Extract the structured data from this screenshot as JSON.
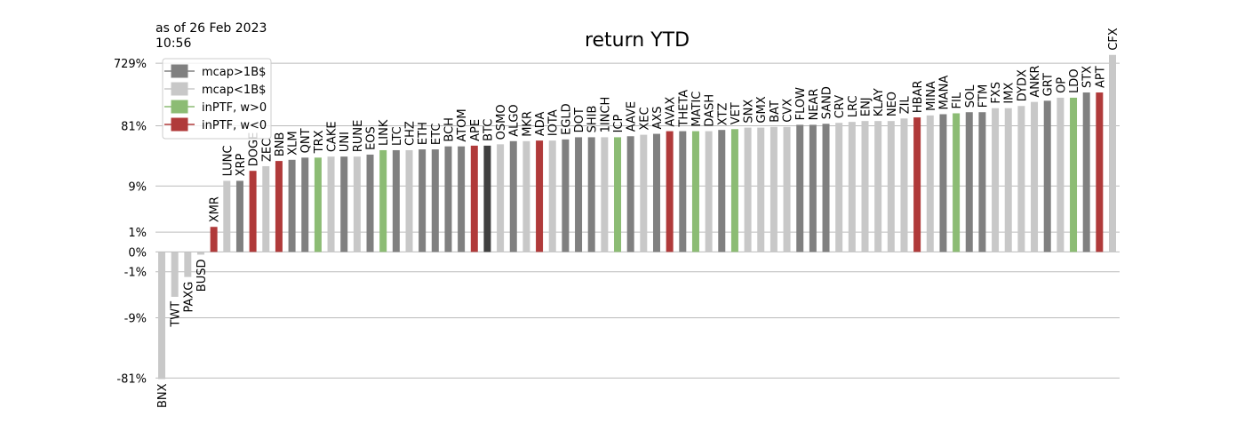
{
  "chart_data": {
    "type": "bar",
    "title": "return YTD",
    "note": [
      "as of 26 Feb 2023",
      "10:56"
    ],
    "scale": "symlog",
    "categories": [
      "BNX",
      "TWT",
      "PAXG",
      "BUSD",
      "XMR",
      "LUNC",
      "XRP",
      "DOGE",
      "ZEC",
      "BNB",
      "XLM",
      "QNT",
      "TRX",
      "CAKE",
      "UNI",
      "RUNE",
      "EOS",
      "LINK",
      "LTC",
      "CHZ",
      "ETH",
      "ETC",
      "BCH",
      "ATOM",
      "APE",
      "BTC",
      "OSMO",
      "ALGO",
      "MKR",
      "ADA",
      "IOTA",
      "EGLD",
      "DOT",
      "SHIB",
      "1INCH",
      "ICP",
      "AAVE",
      "XEC",
      "AXS",
      "AVAX",
      "THETA",
      "MATIC",
      "DASH",
      "XTZ",
      "VET",
      "SNX",
      "GMX",
      "BAT",
      "CVX",
      "FLOW",
      "NEAR",
      "SAND",
      "CRV",
      "LRC",
      "ENJ",
      "KLAY",
      "NEO",
      "ZIL",
      "HBAR",
      "MINA",
      "MANA",
      "FIL",
      "SOL",
      "FTM",
      "FXS",
      "IMX",
      "DYDX",
      "ANKR",
      "GRT",
      "OP",
      "LDO",
      "STX",
      "APT",
      "CFX"
    ],
    "values": [
      -84,
      -3.8,
      -1.4,
      -0.1,
      1.4,
      11,
      11,
      16,
      19,
      23,
      24,
      26,
      26,
      27,
      27,
      27,
      29,
      34,
      34,
      34,
      35,
      35,
      39,
      39,
      40,
      40,
      42,
      47,
      47,
      48,
      48,
      50,
      54,
      54,
      54,
      54,
      56,
      59,
      61,
      67,
      67,
      67,
      67,
      70,
      72,
      76,
      76,
      78,
      78,
      84,
      84,
      87,
      90,
      93,
      96,
      96,
      96,
      105,
      109,
      117,
      122,
      126,
      131,
      131,
      151,
      151,
      163,
      188,
      196,
      218,
      218,
      262,
      262,
      977
    ],
    "colors": [
      "#c8c8c8",
      "#c8c8c8",
      "#c8c8c8",
      "#c8c8c8",
      "#b03a3a",
      "#c8c8c8",
      "#808080",
      "#b03a3a",
      "#c8c8c8",
      "#b03a3a",
      "#808080",
      "#808080",
      "#8cbc74",
      "#c8c8c8",
      "#808080",
      "#c8c8c8",
      "#808080",
      "#8cbc74",
      "#808080",
      "#c8c8c8",
      "#808080",
      "#808080",
      "#808080",
      "#808080",
      "#b03a3a",
      "#404040",
      "#c8c8c8",
      "#808080",
      "#c8c8c8",
      "#b03a3a",
      "#c8c8c8",
      "#808080",
      "#808080",
      "#808080",
      "#c8c8c8",
      "#8cbc74",
      "#808080",
      "#c8c8c8",
      "#808080",
      "#b03a3a",
      "#808080",
      "#8cbc74",
      "#c8c8c8",
      "#808080",
      "#8cbc74",
      "#c8c8c8",
      "#c8c8c8",
      "#c8c8c8",
      "#c8c8c8",
      "#808080",
      "#808080",
      "#808080",
      "#c8c8c8",
      "#c8c8c8",
      "#c8c8c8",
      "#c8c8c8",
      "#c8c8c8",
      "#c8c8c8",
      "#b03a3a",
      "#c8c8c8",
      "#808080",
      "#8cbc74",
      "#808080",
      "#808080",
      "#c8c8c8",
      "#c8c8c8",
      "#c8c8c8",
      "#c8c8c8",
      "#808080",
      "#c8c8c8",
      "#8cbc74",
      "#808080",
      "#b03a3a",
      "#c8c8c8"
    ],
    "legend": [
      {
        "name": "mcap>1B$",
        "color": "#808080"
      },
      {
        "name": "mcap<1B$",
        "color": "#c8c8c8"
      },
      {
        "name": "inPTF, w>0",
        "color": "#8cbc74"
      },
      {
        "name": "inPTF, w<0",
        "color": "#b03a3a"
      }
    ],
    "legend_position": "upper left",
    "ylim": [
      -100,
      1000
    ],
    "yticks": [
      {
        "value": -81,
        "label": "-81%"
      },
      {
        "value": -9,
        "label": "-9%"
      },
      {
        "value": -1,
        "label": "-1%"
      },
      {
        "value": 0,
        "label": "0%"
      },
      {
        "value": 1,
        "label": "1%"
      },
      {
        "value": 9,
        "label": "9%"
      },
      {
        "value": 81,
        "label": "81%"
      },
      {
        "value": 729,
        "label": "729%"
      }
    ],
    "grid": true
  }
}
